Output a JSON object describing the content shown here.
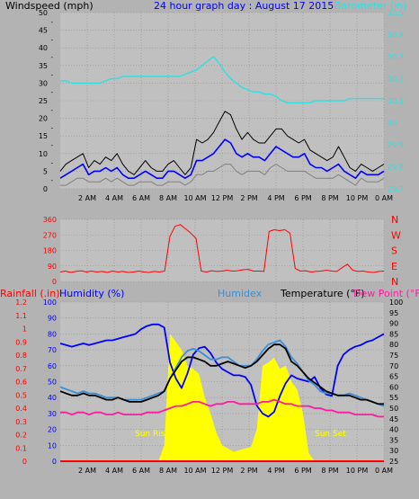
{
  "colors": {
    "page_bg": "#b3b3b3",
    "plot_bg": "#c0c0c0",
    "grid": "#8f8f8f",
    "wind_gust": "#000000",
    "wind_avg": "#0000ff",
    "wind_low": "#808080",
    "barometer": "#2ee0e0",
    "direction": "#ff0000",
    "humidity": "#0000ff",
    "humidex": "#3a8fd8",
    "temperature": "#000000",
    "dewpoint": "#ff1aa0",
    "rain": "#ff0000",
    "solar": "#ffff00",
    "suntext": "#ffff00"
  },
  "chart_data": [
    {
      "type": "line",
      "title": "24 hour graph day : August 17 2015",
      "ylabel_left": "Windspeed (mph)",
      "ylabel_right": "Barometer (in)",
      "ylim_left": [
        0,
        50
      ],
      "ylim_right": [
        29.7,
        30.5
      ],
      "left_ticks": [
        "0",
        "5",
        "10",
        "15",
        "20",
        "25",
        "30",
        "35",
        "40",
        "45",
        "50"
      ],
      "right_ticks": [
        "29.7",
        "29.8",
        "29.9",
        "30",
        "30.1",
        "30.2",
        "30.3",
        "30.4",
        "30.5"
      ],
      "x_ticks": [
        "2 AM",
        "4 AM",
        "6 AM",
        "8 AM",
        "10 AM",
        "12 PM",
        "2 PM",
        "4 PM",
        "6 PM",
        "8 PM",
        "10 PM",
        "0 AM"
      ],
      "series": [
        {
          "name": "Wind gust",
          "values": [
            5,
            7,
            8,
            9,
            10,
            6,
            8,
            7,
            9,
            8,
            10,
            7,
            5,
            4,
            6,
            8,
            6,
            5,
            5,
            7,
            8,
            6,
            4,
            6,
            14,
            13,
            14,
            16,
            19,
            22,
            21,
            17,
            14,
            16,
            14,
            13,
            13,
            15,
            17,
            17,
            15,
            14,
            13,
            14,
            11,
            10,
            9,
            8,
            9,
            12,
            9,
            6,
            5,
            7,
            6,
            5,
            6,
            7
          ]
        },
        {
          "name": "Wind average",
          "values": [
            3,
            4,
            5,
            6,
            7,
            4,
            5,
            5,
            6,
            5,
            6,
            4,
            3,
            3,
            4,
            5,
            4,
            3,
            3,
            5,
            5,
            4,
            3,
            4,
            8,
            8,
            9,
            10,
            12,
            14,
            13,
            10,
            9,
            10,
            9,
            9,
            8,
            10,
            12,
            11,
            10,
            9,
            9,
            10,
            7,
            6,
            6,
            5,
            6,
            7,
            5,
            4,
            3,
            5,
            4,
            4,
            4,
            5
          ]
        },
        {
          "name": "Wind low",
          "values": [
            1,
            1,
            2,
            3,
            3,
            2,
            2,
            2,
            3,
            2,
            3,
            2,
            1,
            1,
            2,
            2,
            2,
            1,
            1,
            2,
            2,
            2,
            1,
            2,
            4,
            4,
            5,
            5,
            6,
            7,
            7,
            5,
            4,
            5,
            5,
            5,
            4,
            6,
            7,
            6,
            5,
            5,
            5,
            5,
            4,
            3,
            3,
            3,
            3,
            4,
            3,
            2,
            1,
            3,
            2,
            2,
            2,
            3
          ]
        },
        {
          "name": "Barometer",
          "values": [
            30.19,
            30.19,
            30.18,
            30.18,
            30.18,
            30.18,
            30.18,
            30.18,
            30.19,
            30.2,
            30.2,
            30.21,
            30.21,
            30.21,
            30.21,
            30.21,
            30.21,
            30.21,
            30.21,
            30.21,
            30.21,
            30.21,
            30.22,
            30.23,
            30.24,
            30.26,
            30.28,
            30.3,
            30.27,
            30.23,
            30.2,
            30.18,
            30.16,
            30.15,
            30.14,
            30.14,
            30.13,
            30.13,
            30.12,
            30.1,
            30.09,
            30.09,
            30.09,
            30.09,
            30.09,
            30.1,
            30.1,
            30.1,
            30.1,
            30.1,
            30.1,
            30.11,
            30.11,
            30.11,
            30.11,
            30.11,
            30.11,
            30.11
          ]
        }
      ]
    },
    {
      "type": "line",
      "ylim": [
        0,
        360
      ],
      "left_ticks": [
        "0",
        "90",
        "180",
        "270",
        "360"
      ],
      "right_labels": [
        "N",
        "E",
        "S",
        "W",
        "N"
      ],
      "x_ticks": [
        "2 AM",
        "4 AM",
        "6 AM",
        "8 AM",
        "10 AM",
        "12 PM",
        "2 PM",
        "4 PM",
        "6 PM",
        "8 PM",
        "10 PM",
        "0 AM"
      ],
      "series": [
        {
          "name": "Wind direction",
          "values": [
            55,
            60,
            52,
            58,
            62,
            55,
            60,
            55,
            58,
            52,
            60,
            55,
            58,
            52,
            55,
            60,
            55,
            52,
            58,
            55,
            60,
            260,
            320,
            330,
            305,
            280,
            250,
            60,
            55,
            62,
            58,
            60,
            65,
            60,
            62,
            68,
            70,
            60,
            60,
            58,
            290,
            300,
            295,
            300,
            280,
            75,
            60,
            62,
            55,
            58,
            60,
            65,
            60,
            58,
            80,
            100,
            65,
            58,
            60,
            55,
            52,
            58,
            60
          ]
        }
      ]
    },
    {
      "type": "line",
      "ylabel_rain": "Rainfall (.in)",
      "ylabel_humidity": "Humidity (%)",
      "label_humidex": "Humidex",
      "label_temperature": "Temperature (°F)",
      "label_dewpoint": "Dew Point (°F)",
      "sunrise_label": "Sun Rise",
      "sunset_label": "Sun Set",
      "rain_ticks": [
        "0",
        "0.1",
        "0.2",
        "0.3",
        "0.4",
        "0.5",
        "0.6",
        "0.7",
        "0.8",
        "0.9",
        "1",
        "1.1",
        "1.2"
      ],
      "humidity_ticks": [
        "0",
        "10",
        "20",
        "30",
        "40",
        "50",
        "60",
        "70",
        "80",
        "90",
        "100"
      ],
      "temp_ticks": [
        "25",
        "30",
        "35",
        "40",
        "45",
        "50",
        "55",
        "60",
        "65",
        "70",
        "75",
        "80",
        "85",
        "90",
        "95",
        "100"
      ],
      "rain_ylim": [
        0,
        1.2
      ],
      "humidity_ylim": [
        0,
        100
      ],
      "temp_ylim": [
        25,
        100
      ],
      "x_ticks": [
        "2 AM",
        "4 AM",
        "6 AM",
        "8 AM",
        "10 AM",
        "12 PM",
        "2 PM",
        "4 PM",
        "6 PM",
        "8 PM",
        "10 PM",
        "0 AM"
      ],
      "series": [
        {
          "name": "Humidity",
          "values": [
            74,
            73,
            72,
            73,
            74,
            73,
            74,
            75,
            76,
            76,
            77,
            78,
            79,
            80,
            83,
            85,
            86,
            86,
            84,
            62,
            52,
            46,
            55,
            67,
            71,
            72,
            68,
            62,
            58,
            56,
            54,
            54,
            53,
            48,
            35,
            30,
            28,
            31,
            41,
            49,
            54,
            52,
            51,
            50,
            53,
            46,
            42,
            41,
            60,
            67,
            70,
            72,
            73,
            75,
            76,
            78,
            80
          ]
        },
        {
          "name": "Humidex",
          "values": [
            60,
            59,
            58,
            57,
            58,
            57,
            57,
            56,
            55,
            55,
            55,
            54,
            54,
            54,
            54,
            55,
            56,
            57,
            58,
            64,
            69,
            74,
            77,
            78,
            77,
            75,
            73,
            73,
            74,
            74,
            72,
            70,
            70,
            70,
            73,
            77,
            80,
            81,
            82,
            79,
            74,
            71,
            67,
            63,
            61,
            58,
            57,
            57,
            56,
            56,
            57,
            56,
            55,
            54,
            53,
            52,
            51
          ]
        },
        {
          "name": "Temperature",
          "values": [
            58,
            57,
            56,
            56,
            57,
            56,
            56,
            55,
            54,
            54,
            55,
            54,
            53,
            53,
            53,
            54,
            55,
            56,
            58,
            64,
            68,
            72,
            74,
            74,
            73,
            72,
            70,
            70,
            71,
            72,
            71,
            70,
            69,
            70,
            72,
            75,
            78,
            80,
            80,
            78,
            72,
            70,
            67,
            64,
            62,
            60,
            58,
            57,
            56,
            56,
            56,
            55,
            54,
            54,
            53,
            52,
            52
          ]
        },
        {
          "name": "Dew Point",
          "values": [
            48,
            48,
            47,
            48,
            48,
            47,
            48,
            48,
            47,
            47,
            48,
            47,
            47,
            47,
            47,
            48,
            48,
            48,
            49,
            50,
            51,
            51,
            52,
            53,
            53,
            52,
            51,
            52,
            52,
            53,
            53,
            52,
            52,
            52,
            52,
            53,
            53,
            54,
            53,
            52,
            52,
            51,
            51,
            51,
            50,
            50,
            49,
            49,
            48,
            48,
            48,
            47,
            47,
            47,
            47,
            46,
            46
          ]
        },
        {
          "name": "Rainfall",
          "values": [
            0,
            0,
            0,
            0,
            0,
            0,
            0,
            0,
            0,
            0,
            0,
            0,
            0,
            0,
            0,
            0,
            0,
            0,
            0,
            0,
            0,
            0,
            0,
            0,
            0,
            0,
            0,
            0,
            0,
            0,
            0,
            0,
            0,
            0,
            0,
            0,
            0,
            0,
            0,
            0,
            0,
            0,
            0,
            0,
            0,
            0,
            0,
            0,
            0,
            0,
            0,
            0,
            0,
            0,
            0,
            0,
            0
          ]
        },
        {
          "name": "Solar",
          "values": [
            0,
            0,
            0,
            0,
            0,
            0,
            0,
            0,
            0,
            0,
            0,
            0,
            0,
            0,
            0,
            0,
            0,
            0,
            10,
            80,
            75,
            70,
            60,
            58,
            55,
            40,
            30,
            18,
            10,
            8,
            6,
            7,
            8,
            9,
            20,
            60,
            62,
            65,
            58,
            60,
            50,
            45,
            30,
            5,
            0,
            0,
            0,
            0,
            0,
            0,
            0,
            0,
            0,
            0,
            0,
            0,
            0
          ]
        }
      ]
    }
  ]
}
